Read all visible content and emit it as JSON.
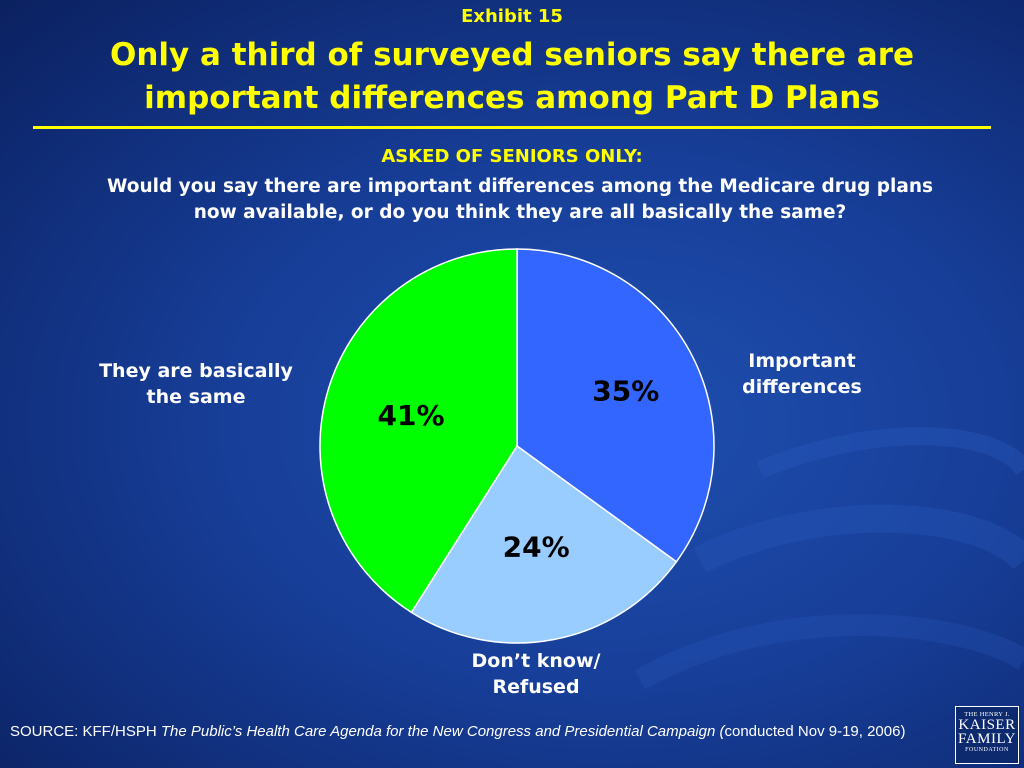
{
  "header": {
    "exhibit": "Exhibit 15",
    "title_line1": "Only a third of surveyed seniors say there are",
    "title_line2": "important differences among Part D Plans",
    "asked": "ASKED OF SENIORS ONLY:",
    "question_line1": "Would you say there are important differences among the Medicare drug plans",
    "question_line2": "now available, or do you think they are all basically the same?"
  },
  "labels": {
    "important_line1": "Important",
    "important_line2": "differences",
    "same_line1": "They are basically",
    "same_line2": "the same",
    "dontknow_line1": "Don’t know/",
    "dontknow_line2": "Refused"
  },
  "footer": {
    "source_prefix": "SOURCE: KFF/HSPH ",
    "source_title": "The Public’s Health Care Agenda for the New Congress and Presidential Campaign (",
    "source_suffix": "conducted Nov 9-19, 2006)"
  },
  "logo": {
    "line1": "THE HENRY J.",
    "line2": "KAISER",
    "line3": "FAMILY",
    "line4": "FOUNDATION"
  },
  "colors": {
    "important": "#3366ff",
    "dontknow": "#99ccff",
    "same": "#00ff00",
    "title": "#ffff00"
  },
  "chart_data": {
    "type": "pie",
    "start_angle_deg": 0,
    "direction": "clockwise",
    "slices": [
      {
        "label": "Important differences",
        "value": 35,
        "display": "35%",
        "color": "#3366ff"
      },
      {
        "label": "Don’t know/ Refused",
        "value": 24,
        "display": "24%",
        "color": "#99ccff"
      },
      {
        "label": "They are basically the same",
        "value": 41,
        "display": "41%",
        "color": "#00ff00"
      }
    ]
  }
}
